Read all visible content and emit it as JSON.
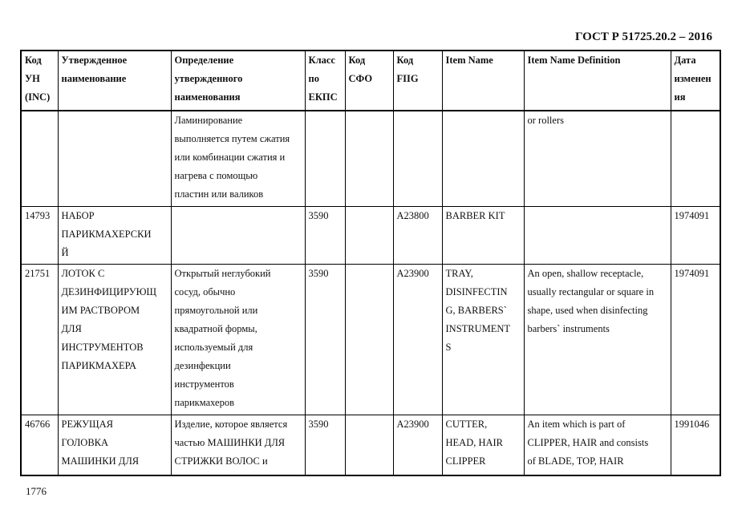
{
  "header": {
    "title": "ГОСТ Р 51725.20.2 – 2016"
  },
  "table": {
    "columns": [
      "Код\nУН\n(INC)",
      "Утвержденное\nнаименование",
      "Определение\nутвержденного\nнаименования",
      "Класс\nпо\nЕКПС",
      "Код\nСФО",
      "Код\nFIIG",
      "Item Name",
      "Item Name Definition",
      "Дата\nизменен\nия"
    ],
    "rows": [
      [
        "",
        "",
        "Ламинирование\nвыполняется путем сжатия\nили комбинации сжатия и\nнагрева с помощью\nпластин или валиков",
        "",
        "",
        "",
        "",
        "or rollers",
        ""
      ],
      [
        "14793",
        "НАБОР\nПАРИКМАХЕРСКИ\nЙ",
        "",
        "3590",
        "",
        "A23800",
        "BARBER KIT",
        "",
        "1974091"
      ],
      [
        "21751",
        "ЛОТОК С\nДЕЗИНФИЦИРУЮЩ\nИМ РАСТВОРОМ\nДЛЯ\nИНСТРУМЕНТОВ\nПАРИКМАХЕРА",
        "Открытый неглубокий\nсосуд, обычно\nпрямоугольной или\nквадратной формы,\nиспользуемый для\nдезинфекции\nинструментов\nпарикмахеров",
        "3590",
        "",
        "A23900",
        "TRAY,\nDISINFECTIN\nG, BARBERS`\nINSTRUMENT\nS",
        "An open, shallow receptacle,\nusually rectangular or square in\nshape, used when disinfecting\nbarbers` instruments",
        "1974091"
      ],
      [
        "46766",
        "РЕЖУЩАЯ\nГОЛОВКА\nМАШИНКИ ДЛЯ",
        "Изделие, которое является\nчастью МАШИНКИ ДЛЯ\nСТРИЖКИ ВОЛОС и",
        "3590",
        "",
        "A23900",
        "CUTTER,\nHEAD, HAIR\nCLIPPER",
        "An item which is part of\nCLIPPER, HAIR and consists\nof BLADE, TOP, HAIR",
        "1991046"
      ]
    ]
  },
  "footer": {
    "page_number": "1776"
  }
}
